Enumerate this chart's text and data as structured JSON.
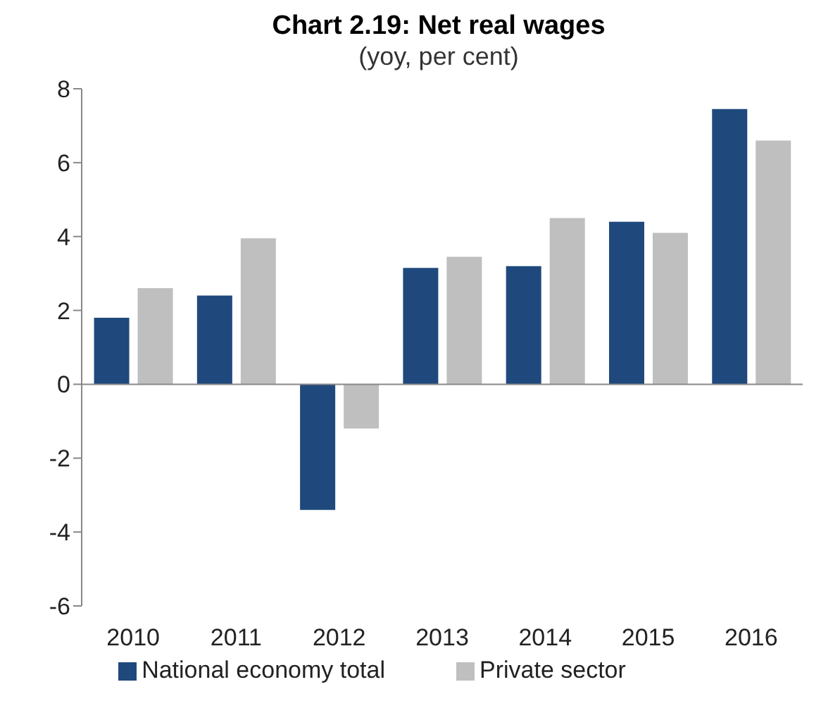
{
  "chart_data": {
    "type": "bar",
    "title": "Chart 2.19: Net real wages",
    "subtitle": "(yoy, per cent)",
    "categories": [
      "2010",
      "2011",
      "2012",
      "2013",
      "2014",
      "2015",
      "2016"
    ],
    "series": [
      {
        "name": "National economy total",
        "color": "#1f497d",
        "values": [
          1.8,
          2.4,
          -3.4,
          3.15,
          3.2,
          4.4,
          7.45
        ]
      },
      {
        "name": "Private sector",
        "color": "#bfbfbf",
        "values": [
          2.6,
          3.95,
          -1.2,
          3.45,
          4.5,
          4.1,
          6.6
        ]
      }
    ],
    "ylim": [
      -6,
      8
    ],
    "yticks": [
      -6,
      -4,
      -2,
      0,
      2,
      4,
      6,
      8
    ],
    "legend": "bottom"
  }
}
